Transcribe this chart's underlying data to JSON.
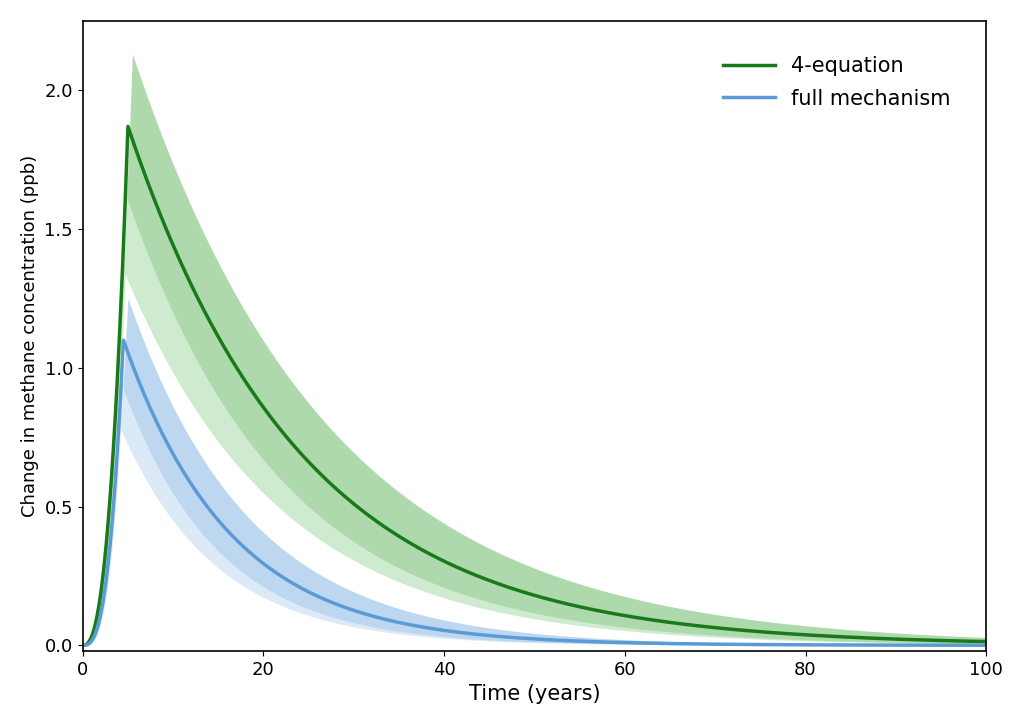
{
  "xlabel": "Time (years)",
  "ylabel": "Change in methane concentration (ppb)",
  "xlim": [
    0,
    100
  ],
  "ylim": [
    -0.02,
    2.25
  ],
  "yticks": [
    0.0,
    0.5,
    1.0,
    1.5,
    2.0
  ],
  "xticks": [
    0,
    20,
    40,
    60,
    80,
    100
  ],
  "green_color": "#1a7a1a",
  "green_fill_inner": "#70b870",
  "green_fill_outer": "#a8dba8",
  "blue_color": "#5b9bd5",
  "blue_fill_inner": "#85b8e8",
  "blue_fill_outer": "#c0d8f0",
  "legend_labels": [
    "4-equation",
    "full mechanism"
  ],
  "xlabel_fontsize": 15,
  "ylabel_fontsize": 13,
  "tick_fontsize": 13,
  "legend_fontsize": 15,
  "green_peak_time": 5.0,
  "green_peak_mean": 1.87,
  "green_peak_upper": 2.13,
  "green_peak_lower": 1.63,
  "blue_peak_time": 4.5,
  "blue_peak_mean": 1.1,
  "blue_peak_upper": 1.25,
  "blue_peak_lower": 0.95,
  "green_decay": 0.052,
  "blue_decay": 0.085,
  "green_rise_shape": 2.5,
  "blue_rise_shape": 2.8
}
